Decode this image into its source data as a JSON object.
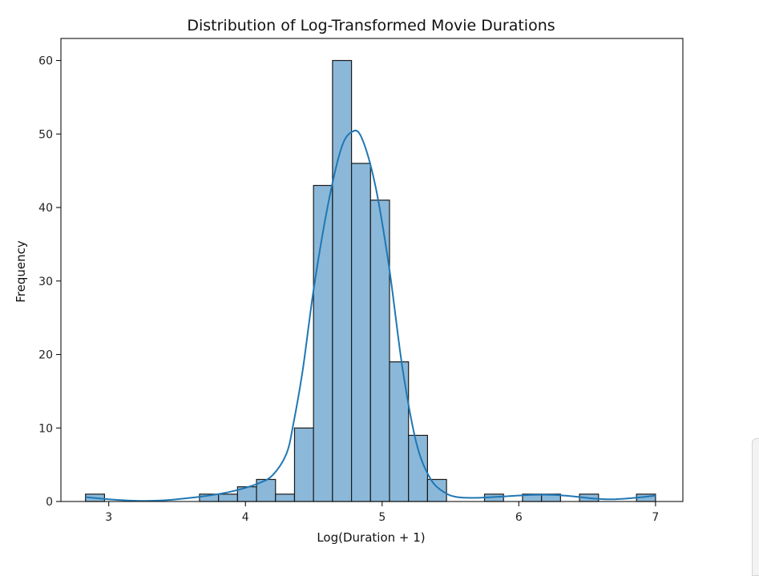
{
  "chart_data": {
    "type": "bar",
    "title": "Distribution of Log-Transformed Movie Durations",
    "xlabel": "Log(Duration + 1)",
    "ylabel": "Frequency",
    "xlim": [
      2.65,
      7.2
    ],
    "ylim": [
      0,
      63
    ],
    "xticks": [
      3,
      4,
      5,
      6,
      7
    ],
    "yticks": [
      0,
      10,
      20,
      30,
      40,
      50,
      60
    ],
    "bin_edges": [
      2.83,
      2.969,
      3.108,
      3.247,
      3.386,
      3.525,
      3.664,
      3.803,
      3.942,
      4.081,
      4.22,
      4.359,
      4.498,
      4.637,
      4.776,
      4.915,
      5.054,
      5.193,
      5.332,
      5.471,
      5.61,
      5.749,
      5.888,
      6.027,
      6.166,
      6.305,
      6.444,
      6.583,
      6.722,
      6.861,
      7.0
    ],
    "values": [
      1,
      0,
      0,
      0,
      0,
      0,
      1,
      1,
      2,
      3,
      1,
      10,
      43,
      60,
      46,
      41,
      19,
      9,
      3,
      0,
      0,
      1,
      0,
      1,
      1,
      0,
      1,
      0,
      0,
      1
    ],
    "series": [
      {
        "name": "",
        "kind": "kde",
        "x": [
          2.83,
          3.0,
          3.2,
          3.4,
          3.6,
          3.8,
          3.95,
          4.1,
          4.2,
          4.3,
          4.35,
          4.42,
          4.5,
          4.6,
          4.7,
          4.78,
          4.85,
          4.95,
          5.05,
          5.15,
          5.25,
          5.35,
          5.45,
          5.55,
          5.7,
          5.9,
          6.1,
          6.25,
          6.4,
          6.55,
          6.7,
          6.85,
          7.0
        ],
        "y": [
          0.6,
          0.3,
          0.1,
          0.15,
          0.5,
          1.0,
          1.6,
          2.5,
          3.6,
          6.5,
          10.5,
          18,
          29,
          40,
          48,
          50.3,
          49.5,
          43,
          32,
          18,
          8,
          3.2,
          1.3,
          0.6,
          0.5,
          0.7,
          0.9,
          0.9,
          0.7,
          0.4,
          0.3,
          0.5,
          0.8
        ]
      }
    ],
    "grid": false,
    "bar_color": "#8bb8d9",
    "line_color": "#1f77b4"
  }
}
